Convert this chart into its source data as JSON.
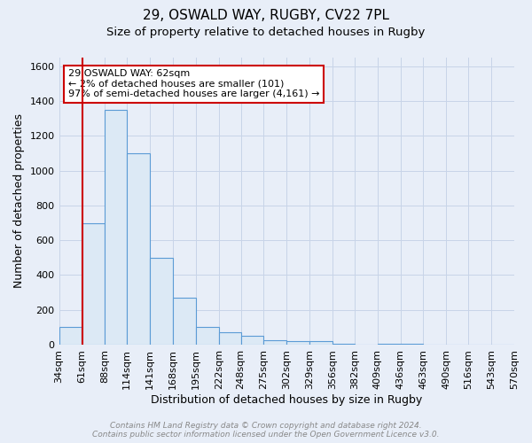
{
  "title_line1": "29, OSWALD WAY, RUGBY, CV22 7PL",
  "title_line2": "Size of property relative to detached houses in Rugby",
  "xlabel": "Distribution of detached houses by size in Rugby",
  "ylabel": "Number of detached properties",
  "bar_edges": [
    34,
    61,
    88,
    114,
    141,
    168,
    195,
    222,
    248,
    275,
    302,
    329,
    356,
    382,
    409,
    436,
    463,
    490,
    516,
    543,
    570
  ],
  "bar_heights": [
    100,
    700,
    1350,
    1100,
    500,
    270,
    100,
    70,
    50,
    25,
    20,
    20,
    5,
    0,
    5,
    5,
    0,
    0,
    0,
    0
  ],
  "bar_facecolor": "#dce9f5",
  "bar_edgecolor": "#5b9bd5",
  "background_color": "#e8eef8",
  "grid_color": "#c8d4e8",
  "property_line_x": 62,
  "property_line_color": "#cc0000",
  "annotation_text": "29 OSWALD WAY: 62sqm\n← 2% of detached houses are smaller (101)\n97% of semi-detached houses are larger (4,161) →",
  "annotation_box_color": "#ffffff",
  "annotation_box_edgecolor": "#cc0000",
  "ylim": [
    0,
    1650
  ],
  "yticks": [
    0,
    200,
    400,
    600,
    800,
    1000,
    1200,
    1400,
    1600
  ],
  "footer_text": "Contains HM Land Registry data © Crown copyright and database right 2024.\nContains public sector information licensed under the Open Government Licence v3.0.",
  "title_fontsize": 11,
  "subtitle_fontsize": 9.5,
  "xlabel_fontsize": 9,
  "ylabel_fontsize": 9,
  "tick_fontsize": 8
}
